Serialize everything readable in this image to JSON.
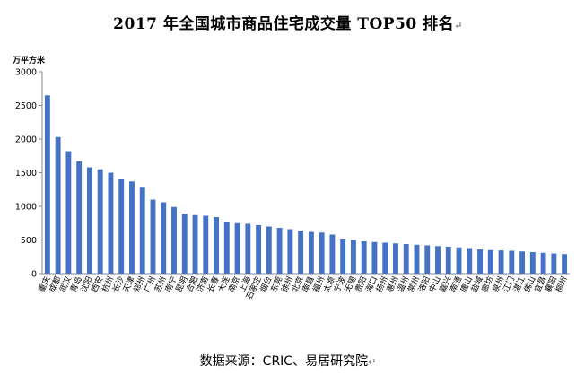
{
  "title": "2017 年全国城市商品住宅成交量 TOP50 排名",
  "title_mark": "↵",
  "source": "数据来源：CRIC、易居研究院",
  "source_mark": "↵",
  "chart_data": {
    "type": "bar",
    "title": "2017 年全国城市商品住宅成交量 TOP50 排名",
    "ylabel": "万平方米",
    "xlabel": "",
    "ylim": [
      0,
      3000
    ],
    "yticks": [
      0,
      500,
      1000,
      1500,
      2000,
      2500,
      3000
    ],
    "grid": false,
    "bar_color": "#4472C4",
    "categories": [
      "重庆",
      "成都",
      "武汉",
      "青岛",
      "沈阳",
      "西安",
      "杭州",
      "长沙",
      "天津",
      "郑州",
      "广州",
      "苏州",
      "南宁",
      "昆明",
      "合肥",
      "济南",
      "长春",
      "大连",
      "南京",
      "上海",
      "石家庄",
      "烟台",
      "东莞",
      "徐州",
      "北京",
      "南昌",
      "福州",
      "太原",
      "宁波",
      "无锡",
      "贵阳",
      "海口",
      "扬州",
      "惠州",
      "温州",
      "常州",
      "洛阳",
      "中山",
      "嘉兴",
      "南通",
      "唐山",
      "盐城",
      "廊坊",
      "泉州",
      "江门",
      "湛江",
      "佛山",
      "宜昌",
      "襄阳",
      "柳州"
    ],
    "values": [
      2650,
      2030,
      1820,
      1670,
      1580,
      1550,
      1500,
      1400,
      1370,
      1290,
      1100,
      1060,
      990,
      890,
      870,
      860,
      840,
      760,
      750,
      740,
      720,
      700,
      680,
      660,
      640,
      620,
      610,
      580,
      520,
      500,
      480,
      470,
      460,
      450,
      440,
      430,
      420,
      410,
      400,
      390,
      380,
      360,
      350,
      345,
      340,
      330,
      320,
      310,
      300,
      290
    ]
  }
}
